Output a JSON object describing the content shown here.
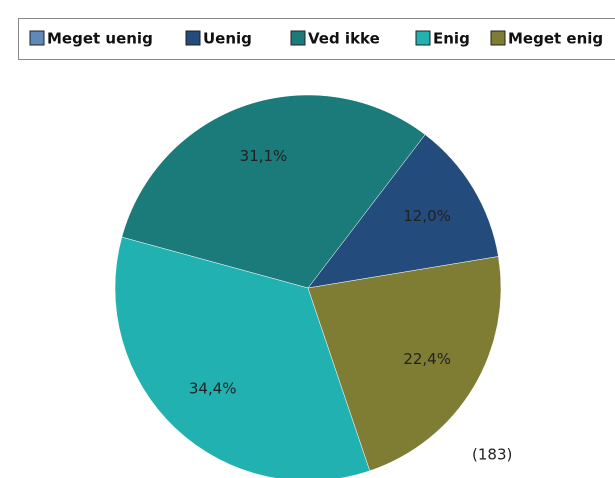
{
  "chart_data": {
    "type": "pie",
    "categories": [
      "Meget uenig",
      "Uenig",
      "Ved ikke",
      "Enig",
      "Meget enig"
    ],
    "values": [
      0,
      12.0,
      31.1,
      34.4,
      22.4
    ],
    "value_labels": [
      null,
      "12,0%",
      "31,1%",
      "34,4%",
      "22,4%"
    ],
    "colors": [
      "#5f89bb",
      "#234b7b",
      "#1b7a7a",
      "#22b1b1",
      "#7f7d33"
    ],
    "note": "(183)",
    "legend": "top"
  }
}
